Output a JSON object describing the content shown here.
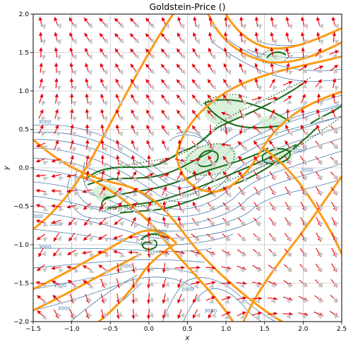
{
  "chart_data": {
    "type": "contour",
    "title": "Goldstein-Price ()",
    "xlabel": "x",
    "ylabel": "y",
    "xlim": [
      -1.5,
      2.5
    ],
    "ylim": [
      -2.0,
      2.0
    ],
    "grid": true,
    "x_ticks": [
      "−1.5",
      "−1.0",
      "−0.5",
      "0.0",
      "0.5",
      "1.0",
      "1.5",
      "2.0",
      "2.5"
    ],
    "y_ticks": [
      "−2.0",
      "−1.5",
      "−1.0",
      "−0.5",
      "0.0",
      "0.5",
      "1.0",
      "1.5",
      "2.0"
    ],
    "contour_labels": [
      {
        "text": "3000",
        "x": -1.35,
        "y": 0.58
      },
      {
        "text": "1000",
        "x": 1.0,
        "y": 0.48
      },
      {
        "text": "2000",
        "x": 1.95,
        "y": 0.2
      },
      {
        "text": "3000",
        "x": 2.05,
        "y": -0.05
      },
      {
        "text": "2000",
        "x": 1.5,
        "y": 0.05
      },
      {
        "text": "3000",
        "x": -1.45,
        "y": -0.65
      },
      {
        "text": "2000",
        "x": -1.2,
        "y": -0.75
      },
      {
        "text": "3000",
        "x": -1.35,
        "y": -1.05
      },
      {
        "text": "2000",
        "x": 0.15,
        "y": -0.85
      },
      {
        "text": "2000",
        "x": -0.3,
        "y": -1.3
      },
      {
        "text": "2000",
        "x": -1.15,
        "y": -1.55
      },
      {
        "text": "2000",
        "x": 0.5,
        "y": -1.6
      },
      {
        "text": "3000",
        "x": -1.1,
        "y": -1.85
      },
      {
        "text": "3000",
        "x": 0.8,
        "y": -1.88
      }
    ],
    "colors": {
      "contour": "#4a7aa8",
      "orange_curve": "#ff9912",
      "green_curve": "#1a6b1a",
      "green_fill": "#cfeccf",
      "arrow_red": "#e8000b",
      "arrow_gray": "#c8c8c8",
      "grid": "#b0b0b0"
    }
  }
}
